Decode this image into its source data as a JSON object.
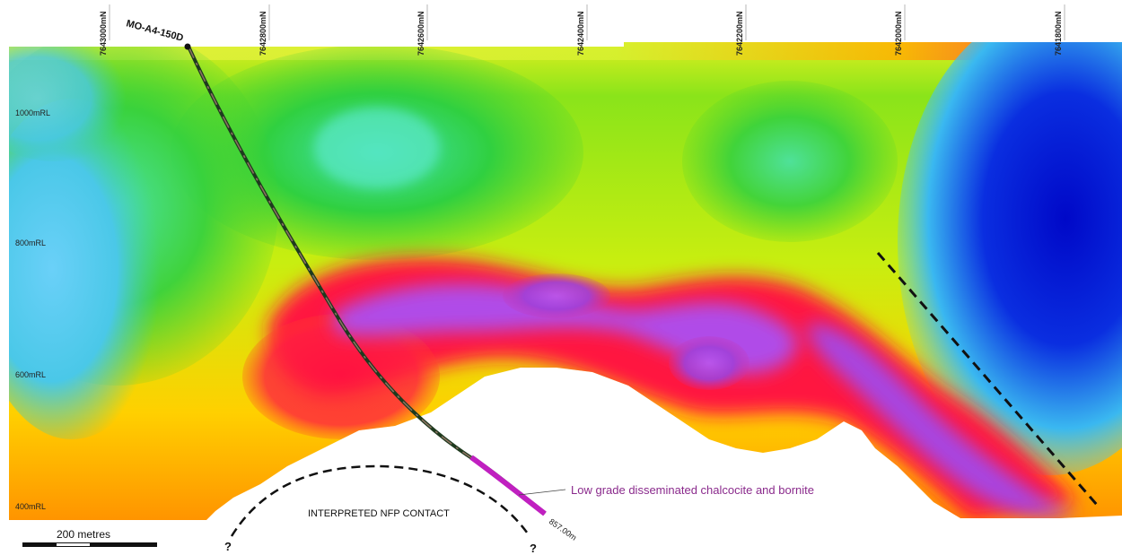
{
  "northings": [
    "7643000mN",
    "7642800mN",
    "7642600mN",
    "7642400mN",
    "7642200mN",
    "7642000mN",
    "7641800mN"
  ],
  "levels": [
    "1000mRL",
    "800mRL",
    "600mRL",
    "400mRL"
  ],
  "drillhole": {
    "name": "MO-A4-150D",
    "end_depth": "857.00m"
  },
  "annotation": "Low grade disseminated chalcocite and bornite",
  "contact_label": "INTERPRETED NFP CONTACT",
  "contact_unknown": "?",
  "scale_bar": "200 metres",
  "colors": {
    "high": "#b040e8",
    "mid_high": "#ff1040",
    "mid": "#ffd000",
    "low": "#30d030",
    "lowest": "#0010c8",
    "drillhole": "#2d4a2d",
    "intercept": "#c020c0"
  }
}
